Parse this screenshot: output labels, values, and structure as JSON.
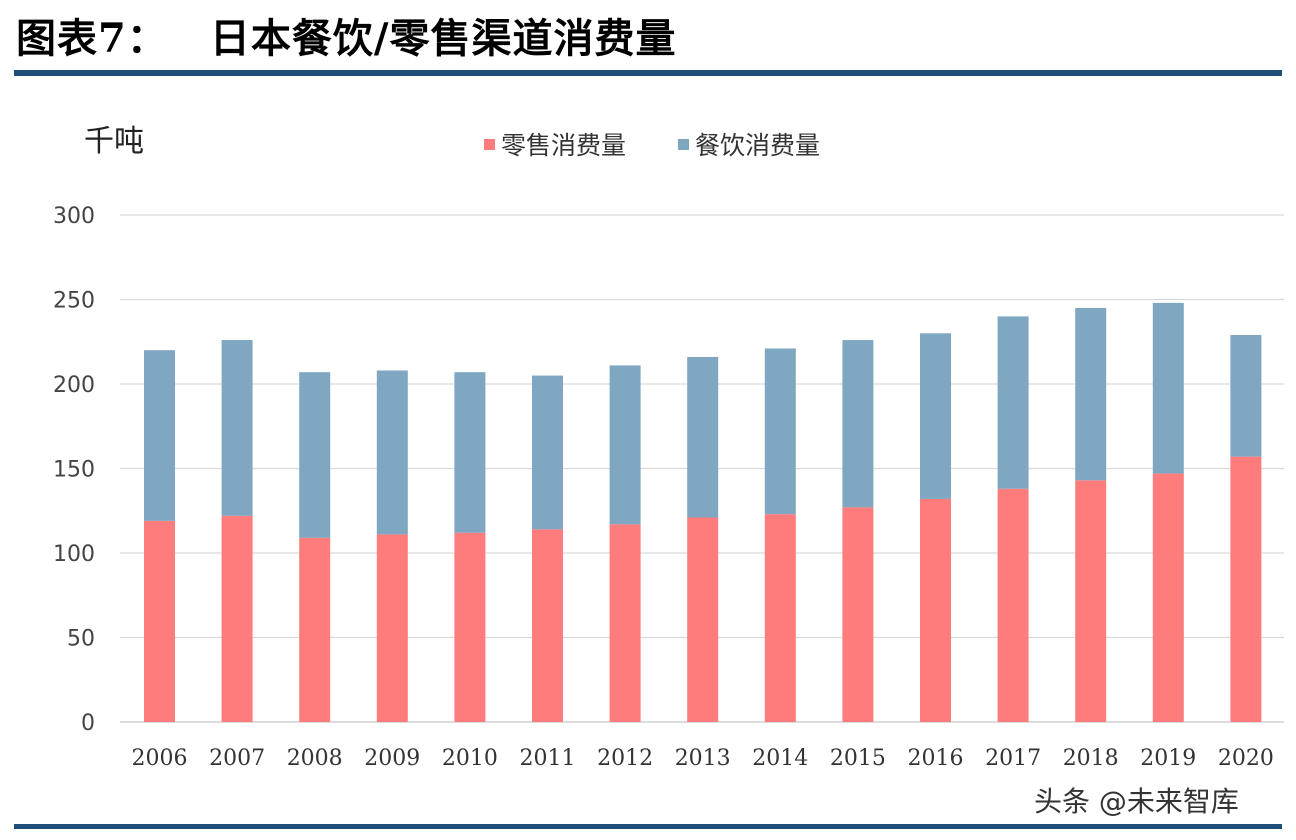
{
  "header": {
    "figure_number": "图表7：",
    "title": "日本餐饮/零售渠道消费量"
  },
  "watermark": "头条 @未来智库",
  "chart_data": {
    "type": "bar",
    "stacked": true,
    "unit_label": "千吨",
    "categories": [
      "2006",
      "2007",
      "2008",
      "2009",
      "2010",
      "2011",
      "2012",
      "2013",
      "2014",
      "2015",
      "2016",
      "2017",
      "2018",
      "2019",
      "2020"
    ],
    "series": [
      {
        "name": "零售消费量",
        "color": "#ff7c7c",
        "values": [
          119,
          122,
          109,
          111,
          112,
          114,
          117,
          121,
          123,
          127,
          132,
          138,
          143,
          147,
          157
        ]
      },
      {
        "name": "餐饮消费量",
        "color": "#7fa7c2",
        "values": [
          101,
          104,
          98,
          97,
          95,
          91,
          94,
          95,
          98,
          99,
          98,
          102,
          102,
          101,
          72
        ]
      }
    ],
    "yticks": [
      "0",
      "50",
      "100",
      "150",
      "200",
      "250",
      "300"
    ],
    "ylim": [
      0,
      300
    ],
    "grid": true,
    "legend_position": "top-center"
  }
}
